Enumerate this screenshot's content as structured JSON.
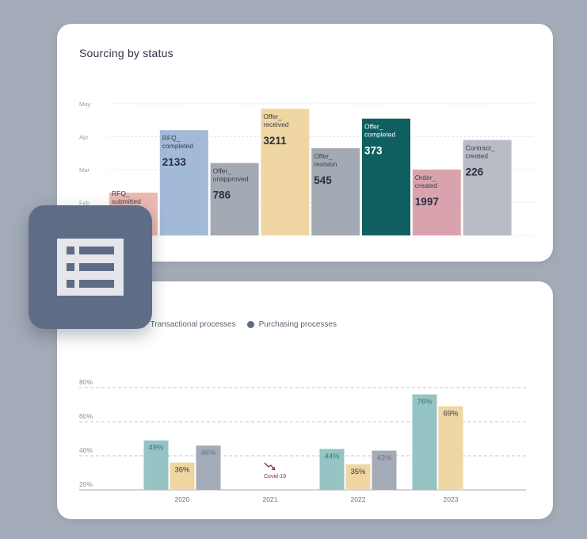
{
  "chart_data": [
    {
      "type": "bar",
      "title": "Sourcing by status",
      "y_ticks": [
        "May",
        "Apr",
        "Mar",
        "Feb"
      ],
      "categories": [
        {
          "label_lines": [
            "RFQ_",
            "submitted"
          ],
          "value": ""
        },
        {
          "label_lines": [
            "RFQ_",
            "completed"
          ],
          "value": "2133"
        },
        {
          "label_lines": [
            "Offer_",
            "unapproved"
          ],
          "value": "786"
        },
        {
          "label_lines": [
            "Offer_",
            "received"
          ],
          "value": "3211"
        },
        {
          "label_lines": [
            "Offer_",
            "revision"
          ],
          "value": "545"
        },
        {
          "label_lines": [
            "Offer_",
            "completed"
          ],
          "value": "373"
        },
        {
          "label_lines": [
            "Order_",
            "created"
          ],
          "value": "1997"
        },
        {
          "label_lines": [
            "Contract_",
            "created"
          ],
          "value": "226"
        }
      ],
      "bar_level_months": [
        1.3,
        3.2,
        2.2,
        3.85,
        2.65,
        3.55,
        2.0,
        2.9
      ],
      "colors": [
        "#eab9b2",
        "#a3b9d8",
        "#a3aab3",
        "#efd6a3",
        "#a3aab3",
        "#0f5f60",
        "#d9a3ae",
        "#b7bcc5"
      ]
    },
    {
      "type": "bar",
      "legend": [
        "processes",
        "Transactional processes",
        "Purchasing processes"
      ],
      "series_colors": [
        "#96c3c3",
        "#efd6a3",
        "#a3aab8"
      ],
      "legend_colors": [
        "#96c3c3",
        "#f3b326",
        "#5f6c86"
      ],
      "y_ticks": [
        "80%",
        "60%",
        "40%",
        "20%"
      ],
      "ylim": [
        20,
        80
      ],
      "categories": [
        "2020",
        "2021",
        "2022",
        "2023"
      ],
      "series": [
        {
          "name": "processes",
          "values": [
            49,
            null,
            44,
            76
          ],
          "label_color": "#2e7b7b"
        },
        {
          "name": "Transactional processes",
          "values": [
            36,
            null,
            35,
            69
          ],
          "label_color": "#333a45"
        },
        {
          "name": "Purchasing processes",
          "values": [
            46,
            null,
            43,
            null
          ],
          "label_color": "#6c7486"
        }
      ],
      "annotation": "Covid-19"
    }
  ],
  "icon": {
    "name": "table-list-icon",
    "color": "#e4e6ea"
  }
}
